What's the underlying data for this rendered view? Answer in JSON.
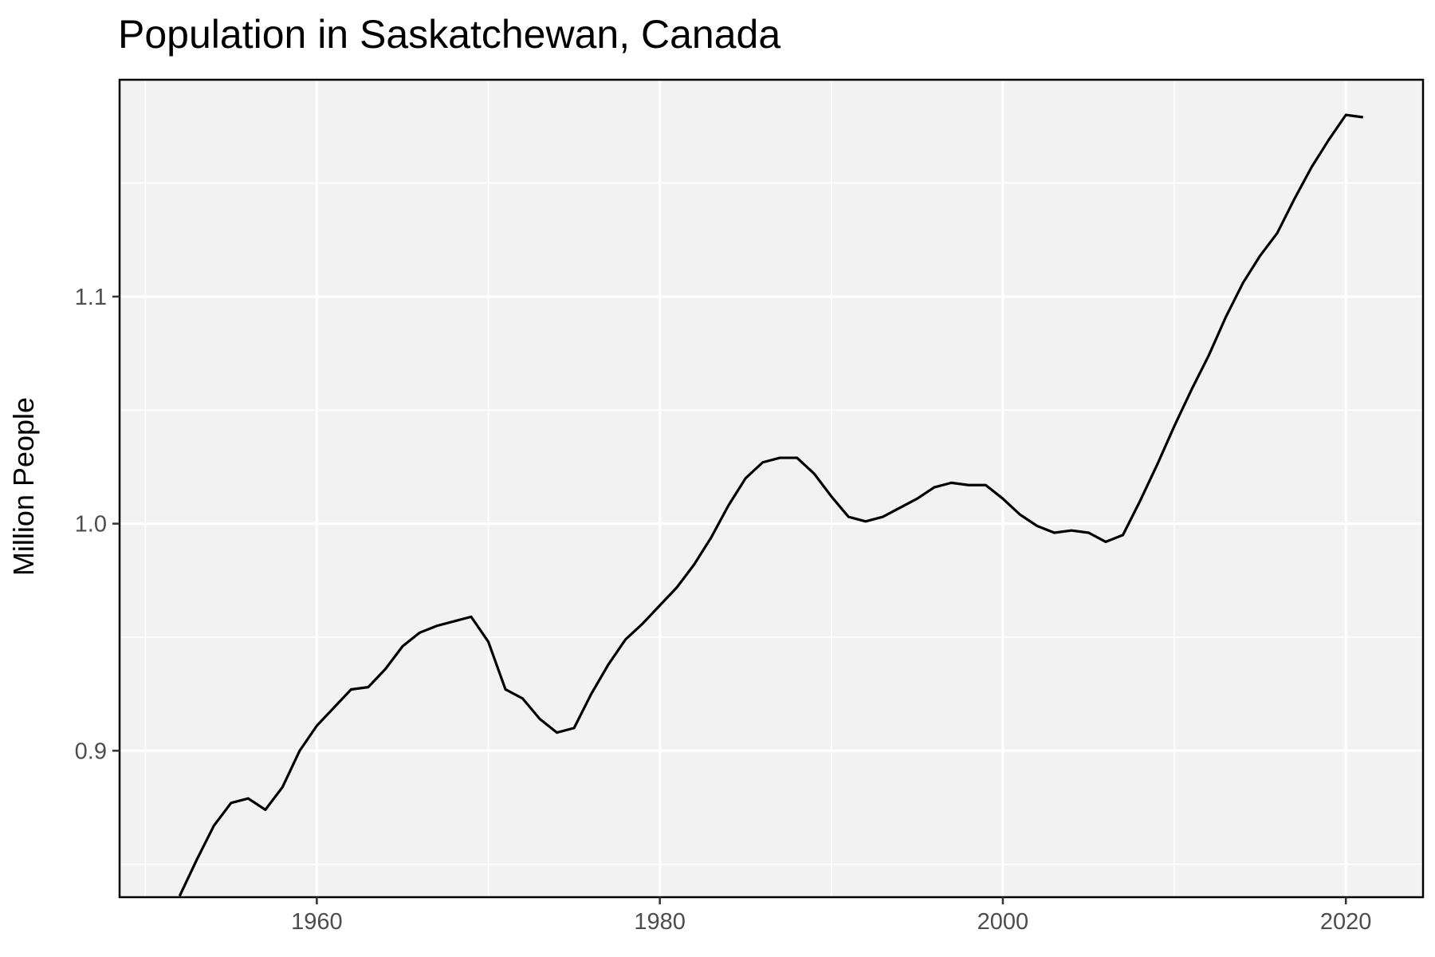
{
  "chart_data": {
    "type": "line",
    "title": "Population in Saskatchewan, Canada",
    "xlabel": "",
    "ylabel": "Million People",
    "xlim": [
      1948.5,
      2024.5
    ],
    "ylim": [
      0.8355,
      1.1955
    ],
    "x_ticks": [
      1960,
      1980,
      2000,
      2020
    ],
    "x_tick_labels": [
      "1960",
      "1980",
      "2000",
      "2020"
    ],
    "x_minor_ticks": [
      1950,
      1970,
      1990,
      2010
    ],
    "y_ticks": [
      0.9,
      1.0,
      1.1
    ],
    "y_tick_labels": [
      "0.9",
      "1.0",
      "1.1"
    ],
    "y_minor_ticks": [
      0.85,
      0.95,
      1.05,
      1.15
    ],
    "grid": true,
    "colors": {
      "panel": "#f2f2f2",
      "grid": "#ffffff",
      "line": "#000000",
      "border": "#000000"
    },
    "series": [
      {
        "x": [
          1952,
          1953,
          1954,
          1955,
          1956,
          1957,
          1958,
          1959,
          1960,
          1961,
          1962,
          1963,
          1964,
          1965,
          1966,
          1967,
          1968,
          1969,
          1970,
          1971,
          1972,
          1973,
          1974,
          1975,
          1976,
          1977,
          1978,
          1979,
          1980,
          1981,
          1982,
          1983,
          1984,
          1985,
          1986,
          1987,
          1988,
          1989,
          1990,
          1991,
          1992,
          1993,
          1994,
          1995,
          1996,
          1997,
          1998,
          1999,
          2000,
          2001,
          2002,
          2003,
          2004,
          2005,
          2006,
          2007,
          2008,
          2009,
          2010,
          2011,
          2012,
          2013,
          2014,
          2015,
          2016,
          2017,
          2018,
          2019,
          2020,
          2021
        ],
        "values": [
          0.836,
          0.852,
          0.867,
          0.877,
          0.879,
          0.874,
          0.884,
          0.9,
          0.911,
          0.919,
          0.927,
          0.928,
          0.936,
          0.946,
          0.952,
          0.955,
          0.957,
          0.959,
          0.948,
          0.927,
          0.923,
          0.914,
          0.908,
          0.91,
          0.925,
          0.938,
          0.949,
          0.956,
          0.964,
          0.972,
          0.982,
          0.994,
          1.008,
          1.02,
          1.027,
          1.029,
          1.029,
          1.022,
          1.012,
          1.003,
          1.001,
          1.003,
          1.007,
          1.011,
          1.016,
          1.018,
          1.017,
          1.017,
          1.011,
          1.004,
          0.999,
          0.996,
          0.997,
          0.996,
          0.992,
          0.995,
          1.01,
          1.026,
          1.043,
          1.059,
          1.074,
          1.091,
          1.106,
          1.118,
          1.128,
          1.143,
          1.157,
          1.169,
          1.18,
          1.179
        ]
      }
    ]
  }
}
